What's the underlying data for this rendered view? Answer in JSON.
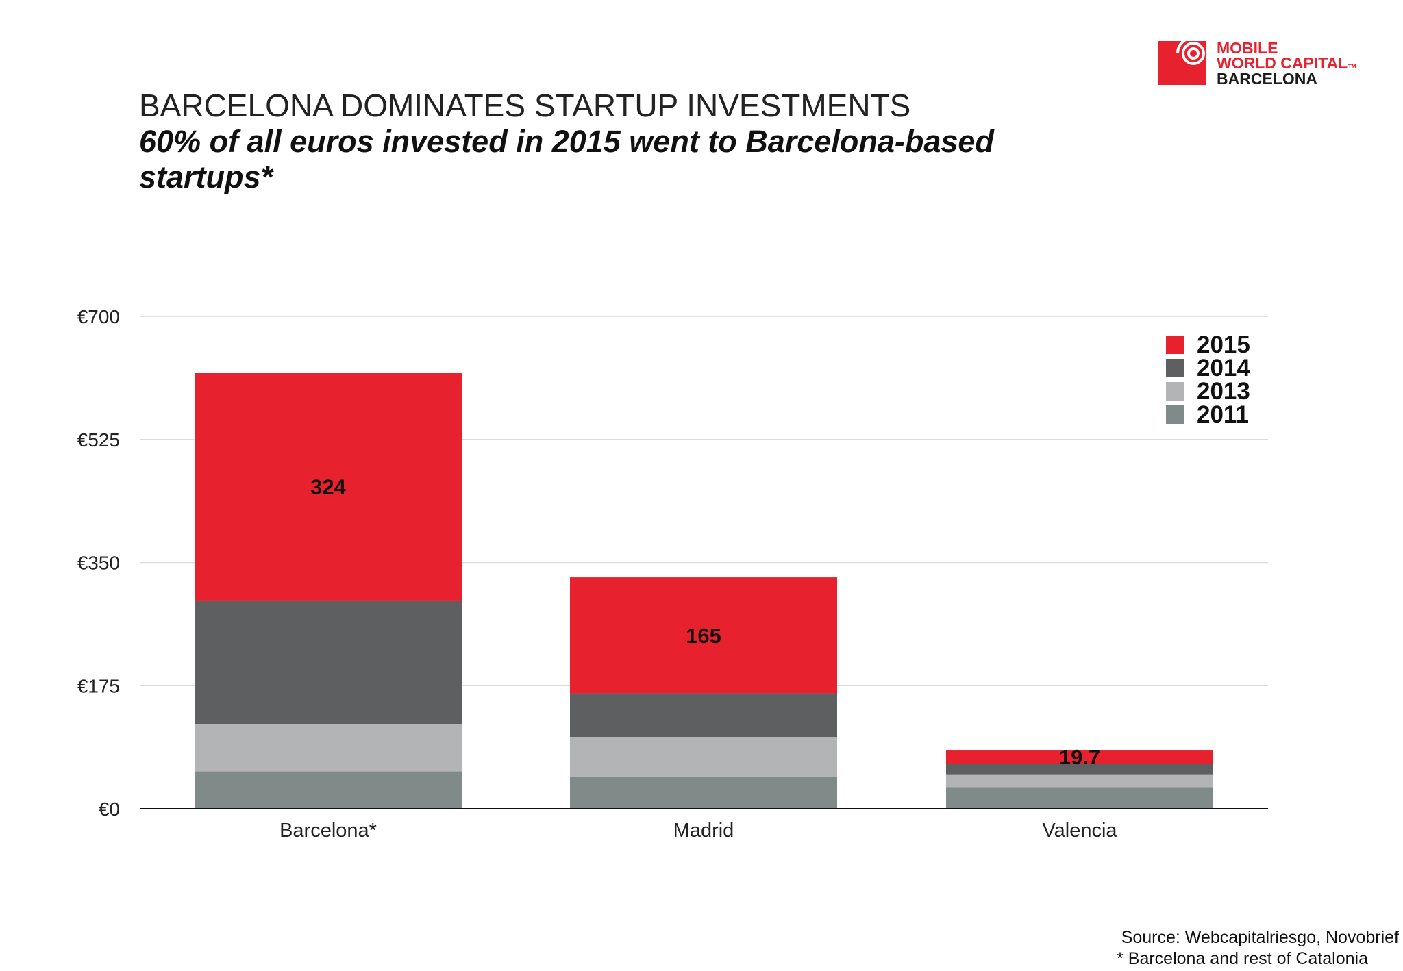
{
  "logo": {
    "line1": "MOBILE",
    "line2": "WORLD CAPITAL",
    "tm": "TM",
    "line3": "BARCELONA",
    "colors": {
      "red": "#e8212f",
      "dark": "#1c1c1c"
    }
  },
  "source": {
    "line1": "Source: Webcapitalriesgo, Novobrief",
    "line2": "* Barcelona and rest of Catalonia"
  },
  "chart_data": {
    "type": "bar",
    "stacked": true,
    "title": "BARCELONA DOMINATES STARTUP INVESTMENTS",
    "subtitle_lines": [
      "60% of all euros invested in 2015 went to Barcelona-based",
      "startups*"
    ],
    "categories": [
      "Barcelona*",
      "Madrid",
      "Valencia"
    ],
    "series": [
      {
        "name": "2011",
        "color": "#808a88",
        "values": [
          53,
          45,
          30
        ]
      },
      {
        "name": "2013",
        "color": "#b3b4b5",
        "values": [
          67,
          57,
          18
        ]
      },
      {
        "name": "2014",
        "color": "#5d5f60",
        "values": [
          176,
          62,
          16
        ]
      },
      {
        "name": "2015",
        "color": "#e8212f",
        "values": [
          324,
          165,
          19.7
        ]
      }
    ],
    "data_labels": [
      {
        "series": "2015",
        "category": "Barcelona*",
        "text": "324"
      },
      {
        "series": "2015",
        "category": "Madrid",
        "text": "165"
      },
      {
        "series": "2015",
        "category": "Valencia",
        "text": "19.7"
      }
    ],
    "ylim": [
      0,
      700
    ],
    "yticks": [
      0,
      175,
      350,
      525,
      700
    ],
    "ytick_labels": [
      "€0",
      "€175",
      "€350",
      "€525",
      "€700"
    ],
    "xlabel": "",
    "ylabel": "",
    "grid": true,
    "legend": {
      "position": "top-right",
      "order": [
        "2015",
        "2014",
        "2013",
        "2011"
      ]
    }
  }
}
